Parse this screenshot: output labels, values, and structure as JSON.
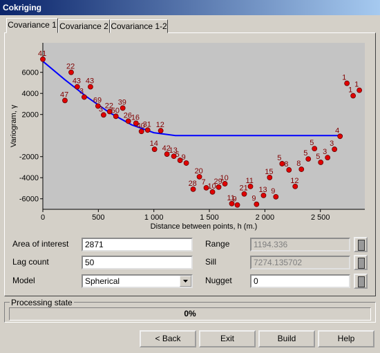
{
  "window": {
    "title": "Cokriging"
  },
  "tabs": [
    "Covariance 1",
    "Covariance 2",
    "Covariance 1-2"
  ],
  "chart_data": {
    "type": "scatter",
    "xlabel": "Distance between points, h (m.)",
    "ylabel": "Variogram, γ",
    "xlim": [
      0,
      2900
    ],
    "ylim": [
      -7000,
      8800
    ],
    "xticks": [
      0,
      500,
      {
        "value": 1000,
        "label": "1 000"
      },
      {
        "value": 1500,
        "label": "1 500"
      },
      {
        "value": 2000,
        "label": "2 000"
      },
      {
        "value": 2500,
        "label": "2 500"
      }
    ],
    "yticks": [
      -6000,
      -4000,
      -2000,
      2000,
      4000,
      6000
    ],
    "series": [
      {
        "color": "#e00000",
        "x": [
          0,
          199,
          255,
          310,
          373,
          429,
          497,
          547,
          602,
          658,
          720,
          770,
          839,
          888,
          944,
          1062,
          1006,
          1118,
          1180,
          1236,
          1292,
          1410,
          1354,
          1472,
          1528,
          1584,
          1640,
          1702,
          1752,
          1814,
          1870,
          1925,
          1988,
          2043,
          2099,
          2155,
          2217,
          2273,
          2329,
          2391,
          2447,
          2503,
          2565,
          2627,
          2677,
          2739,
          2795,
          2851
        ],
        "values": [
          7240,
          3330,
          6000,
          4630,
          3650,
          4630,
          2800,
          1960,
          2280,
          1830,
          2610,
          1370,
          1170,
          390,
          520,
          460,
          -1300,
          -1760,
          -1960,
          -2350,
          -2610,
          -3910,
          -5090,
          -4960,
          -5350,
          -4890,
          -4570,
          -6460,
          -6590,
          -5540,
          -4830,
          -6520,
          -5680,
          -3980,
          -5810,
          -2670,
          -3260,
          -4830,
          -3200,
          -2220,
          -1240,
          -2540,
          -2090,
          -1300,
          -70,
          4960,
          3780,
          4300
        ],
        "labels": [
          41,
          47,
          22,
          43,
          3,
          43,
          69,
          3,
          22,
          50,
          39,
          26,
          16,
          40,
          31,
          12,
          14,
          42,
          13,
          5,
          9,
          20,
          28,
          7,
          10,
          29,
          10,
          11,
          9,
          21,
          11,
          9,
          13,
          15,
          9,
          5,
          8,
          12,
          8,
          5,
          5,
          5,
          3,
          3,
          4,
          1,
          1,
          1
        ]
      }
    ],
    "model": {
      "color": "#0000ff",
      "x": [
        0,
        200,
        400,
        600,
        800,
        1000,
        1194,
        2700
      ],
      "values": [
        7050,
        5290,
        3640,
        2180,
        1020,
        270,
        0,
        0
      ]
    }
  },
  "form": {
    "area_label": "Area of interest",
    "area_value": "2871",
    "lag_label": "Lag count",
    "lag_value": "50",
    "model_label": "Model",
    "model_value": "Spherical",
    "range_label": "Range",
    "range_value": "1194.336",
    "sill_label": "Sill",
    "sill_value": "7274.135702",
    "nugget_label": "Nugget",
    "nugget_value": "0"
  },
  "processing": {
    "title": "Processing state",
    "progress": "0%"
  },
  "buttons": [
    "< Back",
    "Exit",
    "Build",
    "Help"
  ]
}
